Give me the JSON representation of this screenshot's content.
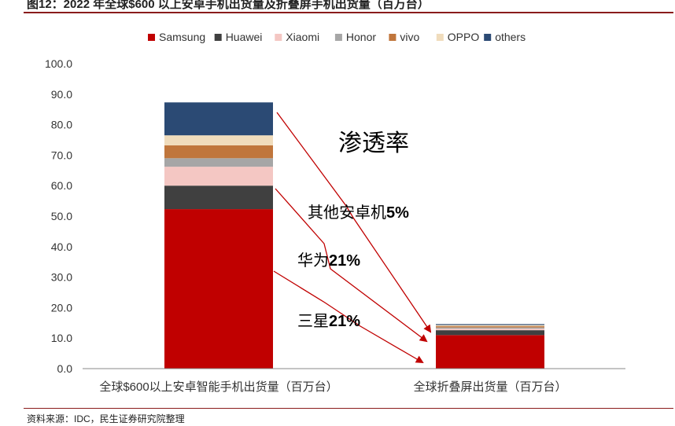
{
  "figure": {
    "title": "图12：2022 年全球$600 以上安卓手机出货量及折叠屏手机出货量（百万台）",
    "source": "资料来源：IDC，民生证券研究院整理"
  },
  "colors": {
    "Samsung": "#c00000",
    "Huawei": "#404040",
    "Xiaomi": "#f4c7c3",
    "Honor": "#a6a6a6",
    "vivo": "#c0763c",
    "OPPO": "#f0dcbc",
    "others": "#2b4a74",
    "arrow": "#c00000"
  },
  "chart_data": {
    "type": "bar",
    "stacked": true,
    "categories": [
      "全球$600以上安卓智能手机出货量（百万台）",
      "全球折叠屏出货量（百万台）"
    ],
    "series": [
      {
        "name": "Samsung",
        "values": [
          52.3,
          11.0
        ]
      },
      {
        "name": "Huawei",
        "values": [
          7.7,
          1.6
        ]
      },
      {
        "name": "Xiaomi",
        "values": [
          6.2,
          0.5
        ]
      },
      {
        "name": "Honor",
        "values": [
          2.8,
          0.4
        ]
      },
      {
        "name": "vivo",
        "values": [
          4.2,
          0.4
        ]
      },
      {
        "name": "OPPO",
        "values": [
          3.3,
          0.4
        ]
      },
      {
        "name": "others",
        "values": [
          10.8,
          0.3
        ]
      }
    ],
    "ylim": [
      0,
      100
    ],
    "yticks": [
      "0.0",
      "10.0",
      "20.0",
      "30.0",
      "40.0",
      "50.0",
      "60.0",
      "70.0",
      "80.0",
      "90.0",
      "100.0"
    ],
    "legend_position": "top",
    "grid": false,
    "annotations": {
      "heading": "渗透率",
      "others_label_text": "其他安卓机",
      "others_label_pct": "5%",
      "huawei_label_text": "华为",
      "huawei_label_pct": "21%",
      "samsung_label_text": "三星",
      "samsung_label_pct": "21%"
    }
  }
}
